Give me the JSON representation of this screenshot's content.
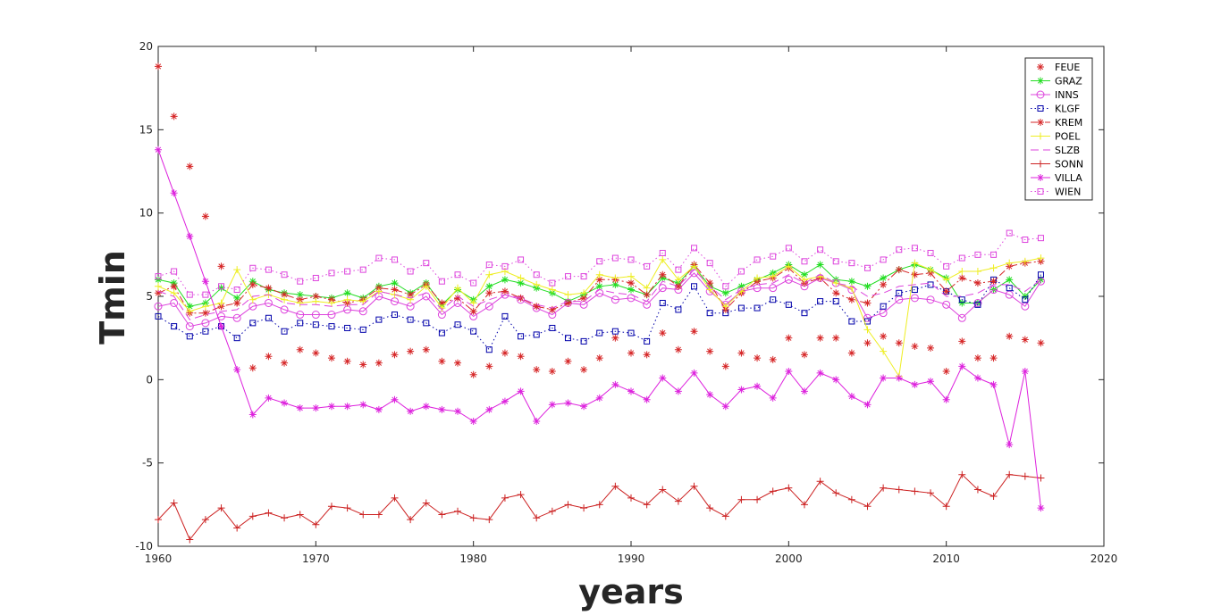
{
  "chart_data": {
    "type": "line",
    "title": "",
    "xlabel": "years",
    "ylabel": "Tmin",
    "xlim": [
      1960,
      2020
    ],
    "ylim": [
      -10,
      20
    ],
    "xticks": [
      1960,
      1970,
      1980,
      1990,
      2000,
      2010,
      2020
    ],
    "yticks": [
      -10,
      -5,
      0,
      5,
      10,
      15,
      20
    ],
    "grid": false,
    "legend_position": "top-right",
    "x": [
      1960,
      1961,
      1962,
      1963,
      1964,
      1965,
      1966,
      1967,
      1968,
      1969,
      1970,
      1971,
      1972,
      1973,
      1974,
      1975,
      1976,
      1977,
      1978,
      1979,
      1980,
      1981,
      1982,
      1983,
      1984,
      1985,
      1986,
      1987,
      1988,
      1989,
      1990,
      1991,
      1992,
      1993,
      1994,
      1995,
      1996,
      1997,
      1998,
      1999,
      2000,
      2001,
      2002,
      2003,
      2004,
      2005,
      2006,
      2007,
      2008,
      2009,
      2010,
      2011,
      2012,
      2013,
      2014,
      2015,
      2016
    ],
    "series": [
      {
        "name": "FEUE",
        "color": "#d62728",
        "marker": "asterisk",
        "line": "none",
        "values": [
          18.8,
          15.8,
          12.8,
          9.8,
          6.8,
          4.6,
          0.7,
          1.4,
          1.0,
          1.8,
          1.6,
          1.3,
          1.1,
          0.9,
          1.0,
          1.5,
          1.7,
          1.8,
          1.1,
          1.0,
          0.3,
          0.8,
          1.6,
          1.4,
          0.6,
          0.5,
          1.1,
          0.6,
          1.3,
          2.5,
          1.6,
          1.5,
          2.8,
          1.8,
          2.9,
          1.7,
          0.8,
          1.6,
          1.3,
          1.2,
          2.5,
          1.5,
          2.5,
          2.5,
          1.6,
          2.2,
          2.6,
          2.2,
          2.0,
          1.9,
          0.5,
          2.3,
          1.3,
          1.3,
          2.6,
          2.4,
          2.2
        ]
      },
      {
        "name": "GRAZ",
        "color": "#22dd22",
        "marker": "asterisk",
        "line": "solid",
        "values": [
          6.0,
          5.8,
          4.4,
          4.6,
          5.5,
          4.9,
          5.9,
          5.4,
          5.2,
          5.1,
          5.0,
          4.9,
          5.2,
          4.9,
          5.6,
          5.8,
          5.2,
          5.8,
          4.5,
          5.4,
          4.8,
          5.6,
          6.0,
          5.8,
          5.5,
          5.2,
          4.7,
          5.1,
          5.6,
          5.7,
          5.4,
          5.1,
          6.1,
          5.8,
          6.8,
          5.6,
          5.2,
          5.6,
          6.0,
          6.4,
          6.9,
          6.3,
          6.9,
          6.0,
          5.9,
          5.6,
          6.1,
          6.6,
          6.9,
          6.6,
          6.1,
          4.6,
          4.6,
          5.4,
          6.0,
          5.0,
          6.0
        ]
      },
      {
        "name": "INNS",
        "color": "#dd44dd",
        "marker": "circle",
        "line": "solid",
        "values": [
          4.4,
          4.6,
          3.2,
          3.4,
          3.8,
          3.7,
          4.4,
          4.6,
          4.2,
          3.9,
          3.9,
          3.9,
          4.2,
          4.1,
          5.0,
          4.7,
          4.4,
          5.0,
          3.9,
          4.6,
          3.8,
          4.4,
          5.1,
          4.8,
          4.3,
          3.9,
          4.6,
          4.5,
          5.2,
          4.8,
          4.9,
          4.5,
          5.5,
          5.4,
          6.4,
          5.3,
          4.5,
          5.3,
          5.5,
          5.5,
          6.0,
          5.6,
          6.1,
          5.8,
          5.4,
          3.7,
          4.0,
          4.8,
          4.9,
          4.8,
          4.5,
          3.7,
          4.6,
          5.4,
          5.1,
          4.4,
          5.9
        ]
      },
      {
        "name": "KLGF",
        "color": "#0000aa",
        "marker": "square",
        "line": "dotted",
        "values": [
          3.8,
          3.2,
          2.6,
          2.9,
          3.2,
          2.5,
          3.4,
          3.7,
          2.9,
          3.4,
          3.3,
          3.2,
          3.1,
          3.0,
          3.6,
          3.9,
          3.6,
          3.4,
          2.8,
          3.3,
          2.9,
          1.8,
          3.8,
          2.6,
          2.7,
          3.1,
          2.5,
          2.3,
          2.8,
          2.9,
          2.8,
          2.3,
          4.6,
          4.2,
          5.6,
          4.0,
          4.0,
          4.3,
          4.3,
          4.8,
          4.5,
          4.0,
          4.7,
          4.7,
          3.5,
          3.5,
          4.4,
          5.2,
          5.4,
          5.7,
          5.3,
          4.8,
          4.5,
          6.0,
          5.5,
          4.8,
          6.3
        ]
      },
      {
        "name": "KREM",
        "color": "#d62728",
        "marker": "asterisk",
        "line": "dashdot",
        "values": [
          5.2,
          5.6,
          4.0,
          4.0,
          4.4,
          4.6,
          5.7,
          5.5,
          5.1,
          4.8,
          5.0,
          4.8,
          4.6,
          4.8,
          5.5,
          5.4,
          5.1,
          5.7,
          4.6,
          4.9,
          4.1,
          5.2,
          5.3,
          4.9,
          4.4,
          4.2,
          4.6,
          4.9,
          6.0,
          6.0,
          5.8,
          5.1,
          6.3,
          5.6,
          6.9,
          5.8,
          4.2,
          5.2,
          5.9,
          6.1,
          6.7,
          5.8,
          6.1,
          5.2,
          4.8,
          4.6,
          5.7,
          6.6,
          6.3,
          6.4,
          5.3,
          6.1,
          5.8,
          5.9,
          6.8,
          7.0,
          7.1
        ]
      },
      {
        "name": "POEL",
        "color": "#eeee22",
        "marker": "plus",
        "line": "solid",
        "values": [
          5.6,
          5.2,
          4.1,
          4.4,
          4.6,
          6.6,
          4.8,
          5.1,
          4.8,
          4.6,
          4.7,
          4.6,
          4.8,
          4.7,
          5.3,
          5.1,
          4.8,
          5.6,
          4.3,
          5.5,
          4.6,
          6.3,
          6.5,
          6.1,
          5.7,
          5.4,
          5.1,
          5.2,
          6.3,
          6.1,
          6.2,
          5.5,
          7.2,
          6.0,
          6.8,
          5.4,
          4.4,
          5.3,
          6.1,
          6.2,
          6.8,
          6.0,
          6.2,
          5.8,
          5.5,
          3.0,
          1.7,
          0.2,
          7.0,
          6.6,
          6.0,
          6.5,
          6.5,
          6.7,
          7.0,
          7.1,
          7.3
        ]
      },
      {
        "name": "SLZB",
        "color": "#dd44dd",
        "marker": "none",
        "line": "dashed",
        "values": [
          5.3,
          5.0,
          3.6,
          3.9,
          4.1,
          4.2,
          5.0,
          5.1,
          4.6,
          4.5,
          4.5,
          4.4,
          4.5,
          4.5,
          5.3,
          5.1,
          4.9,
          5.2,
          4.2,
          5.0,
          4.4,
          4.8,
          5.1,
          4.9,
          4.5,
          4.3,
          4.7,
          4.7,
          5.4,
          5.2,
          5.1,
          4.7,
          5.9,
          5.6,
          6.6,
          5.6,
          4.8,
          5.4,
          5.7,
          5.8,
          6.3,
          5.8,
          6.3,
          5.8,
          5.6,
          5.0,
          5.2,
          5.6,
          5.7,
          5.8,
          5.0,
          5.0,
          5.2,
          5.7,
          5.7,
          5.3,
          6.0
        ]
      },
      {
        "name": "SONN",
        "color": "#cc2222",
        "marker": "plus",
        "line": "solid",
        "values": [
          -8.4,
          -7.4,
          -9.6,
          -8.4,
          -7.7,
          -8.9,
          -8.2,
          -8.0,
          -8.3,
          -8.1,
          -8.7,
          -7.6,
          -7.7,
          -8.1,
          -8.1,
          -7.1,
          -8.4,
          -7.4,
          -8.1,
          -7.9,
          -8.3,
          -8.4,
          -7.1,
          -6.9,
          -8.3,
          -7.9,
          -7.5,
          -7.7,
          -7.5,
          -6.4,
          -7.1,
          -7.5,
          -6.6,
          -7.3,
          -6.4,
          -7.7,
          -8.2,
          -7.2,
          -7.2,
          -6.7,
          -6.5,
          -7.5,
          -6.1,
          -6.8,
          -7.2,
          -7.6,
          -6.5,
          -6.6,
          -6.7,
          -6.8,
          -7.6,
          -5.7,
          -6.6,
          -7.0,
          -5.7,
          -5.8,
          -5.9
        ]
      },
      {
        "name": "VILLA",
        "color": "#dd22dd",
        "marker": "asterisk",
        "line": "solid",
        "values": [
          13.8,
          11.2,
          8.6,
          5.9,
          3.2,
          0.6,
          -2.1,
          -1.1,
          -1.4,
          -1.7,
          -1.7,
          -1.6,
          -1.6,
          -1.5,
          -1.8,
          -1.2,
          -1.9,
          -1.6,
          -1.8,
          -1.9,
          -2.5,
          -1.8,
          -1.3,
          -0.7,
          -2.5,
          -1.5,
          -1.4,
          -1.6,
          -1.1,
          -0.3,
          -0.7,
          -1.2,
          0.1,
          -0.7,
          0.4,
          -0.9,
          -1.6,
          -0.6,
          -0.4,
          -1.1,
          0.5,
          -0.7,
          0.4,
          0.0,
          -1.0,
          -1.5,
          0.1,
          0.1,
          -0.3,
          -0.1,
          -1.2,
          0.8,
          0.1,
          -0.3,
          -3.9,
          0.5,
          -7.7
        ]
      },
      {
        "name": "WIEN",
        "color": "#dd44dd",
        "marker": "square",
        "line": "dotted",
        "values": [
          6.2,
          6.5,
          5.1,
          5.1,
          5.6,
          5.4,
          6.7,
          6.6,
          6.3,
          5.9,
          6.1,
          6.4,
          6.5,
          6.6,
          7.3,
          7.2,
          6.5,
          7.0,
          5.9,
          6.3,
          5.8,
          6.9,
          6.8,
          7.2,
          6.3,
          5.8,
          6.2,
          6.2,
          7.1,
          7.3,
          7.2,
          6.8,
          7.6,
          6.6,
          7.9,
          7.0,
          5.6,
          6.5,
          7.2,
          7.4,
          7.9,
          7.1,
          7.8,
          7.1,
          7.0,
          6.7,
          7.2,
          7.8,
          7.9,
          7.6,
          6.8,
          7.3,
          7.5,
          7.5,
          8.8,
          8.4,
          8.5
        ]
      }
    ]
  }
}
